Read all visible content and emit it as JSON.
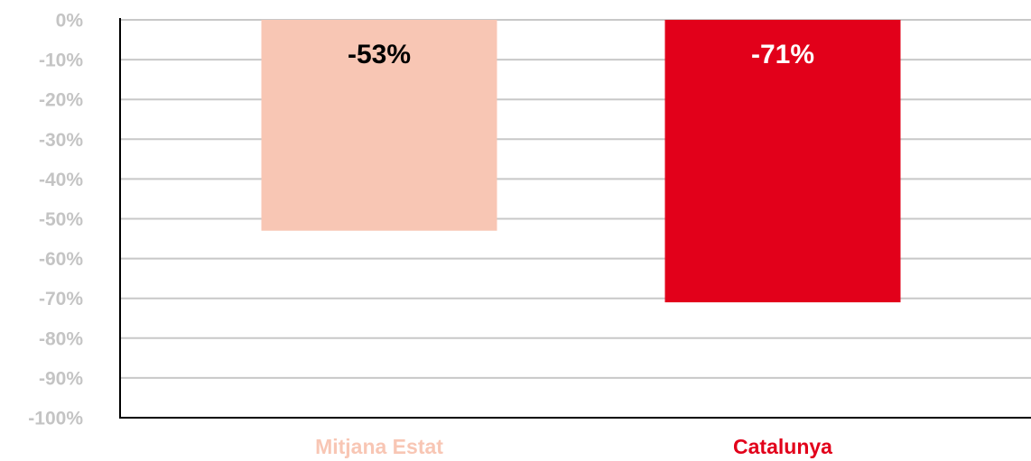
{
  "chart_data": {
    "type": "bar",
    "categories": [
      "Mitjana Estat",
      "Catalunya"
    ],
    "values": [
      -53,
      -71
    ],
    "value_labels": [
      "-53%",
      "-71%"
    ],
    "colors": [
      "#f8c6b4",
      "#e2001a"
    ],
    "label_colors": [
      "#000000",
      "#ffffff"
    ],
    "ylim": [
      -100,
      0
    ],
    "yticks": [
      {
        "value": 0,
        "label": "0%"
      },
      {
        "value": -10,
        "label": "-10%"
      },
      {
        "value": -20,
        "label": "-20%"
      },
      {
        "value": -30,
        "label": "-30%"
      },
      {
        "value": -40,
        "label": "-40%"
      },
      {
        "value": -50,
        "label": "-50%"
      },
      {
        "value": -60,
        "label": "-60%"
      },
      {
        "value": -70,
        "label": "-70%"
      },
      {
        "value": -80,
        "label": "-80%"
      },
      {
        "value": -90,
        "label": "-90%"
      },
      {
        "value": -100,
        "label": "-100%"
      }
    ],
    "grid": true
  }
}
